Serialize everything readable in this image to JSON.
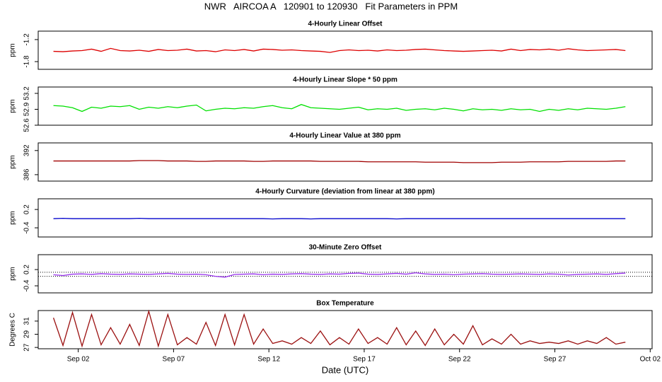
{
  "title": "NWR   AIRCOA A   120901 to 120930   Fit Parameters in PPM",
  "chart_data": [
    {
      "type": "line",
      "title": "4-Hourly Linear Offset",
      "y_label": "ppm",
      "color": "#dd0000",
      "xlim": [
        -0.1,
        32.1
      ],
      "ylim": [
        -2.01,
        -0.97
      ],
      "yticks": [
        -1.8,
        -1.2
      ],
      "x": [
        0.7,
        1.2,
        1.7,
        2.2,
        2.7,
        3.2,
        3.7,
        4.2,
        4.7,
        5.2,
        5.7,
        6.2,
        6.7,
        7.2,
        7.7,
        8.2,
        8.7,
        9.2,
        9.7,
        10.2,
        10.7,
        11.2,
        11.7,
        12.2,
        12.7,
        13.2,
        13.7,
        14.2,
        14.7,
        15.2,
        15.7,
        16.2,
        16.7,
        17.2,
        17.7,
        18.2,
        18.7,
        19.2,
        19.7,
        20.2,
        20.7,
        21.2,
        21.7,
        22.2,
        22.7,
        23.2,
        23.7,
        24.2,
        24.7,
        25.2,
        25.7,
        26.2,
        26.7,
        27.2,
        27.7,
        28.2,
        28.7,
        29.2,
        29.7,
        30.2,
        30.7
      ],
      "values": [
        -1.52,
        -1.53,
        -1.51,
        -1.5,
        -1.46,
        -1.52,
        -1.44,
        -1.5,
        -1.51,
        -1.49,
        -1.52,
        -1.47,
        -1.5,
        -1.49,
        -1.46,
        -1.51,
        -1.5,
        -1.53,
        -1.48,
        -1.5,
        -1.47,
        -1.51,
        -1.46,
        -1.47,
        -1.49,
        -1.48,
        -1.5,
        -1.51,
        -1.52,
        -1.55,
        -1.5,
        -1.48,
        -1.5,
        -1.49,
        -1.51,
        -1.48,
        -1.5,
        -1.49,
        -1.47,
        -1.46,
        -1.48,
        -1.5,
        -1.51,
        -1.52,
        -1.51,
        -1.5,
        -1.49,
        -1.51,
        -1.46,
        -1.5,
        -1.47,
        -1.48,
        -1.46,
        -1.49,
        -1.45,
        -1.48,
        -1.5,
        -1.49,
        -1.48,
        -1.47,
        -1.5
      ]
    },
    {
      "type": "line",
      "title": "4-Hourly Linear Slope * 50 ppm",
      "y_label": "ppm",
      "color": "#00e000",
      "xlim": [
        -0.1,
        32.1
      ],
      "ylim": [
        52.6,
        53.32
      ],
      "yticks": [
        52.6,
        52.9,
        53.2
      ],
      "x": [
        0.7,
        1.2,
        1.7,
        2.2,
        2.7,
        3.2,
        3.7,
        4.2,
        4.7,
        5.2,
        5.7,
        6.2,
        6.7,
        7.2,
        7.7,
        8.2,
        8.7,
        9.2,
        9.7,
        10.2,
        10.7,
        11.2,
        11.7,
        12.2,
        12.7,
        13.2,
        13.7,
        14.2,
        14.7,
        15.2,
        15.7,
        16.2,
        16.7,
        17.2,
        17.7,
        18.2,
        18.7,
        19.2,
        19.7,
        20.2,
        20.7,
        21.2,
        21.7,
        22.2,
        22.7,
        23.2,
        23.7,
        24.2,
        24.7,
        25.2,
        25.7,
        26.2,
        26.7,
        27.2,
        27.7,
        28.2,
        28.7,
        29.2,
        29.7,
        30.2,
        30.7
      ],
      "values": [
        52.97,
        52.96,
        52.93,
        52.86,
        52.94,
        52.92,
        52.96,
        52.95,
        52.97,
        52.9,
        52.94,
        52.92,
        52.95,
        52.93,
        52.96,
        52.98,
        52.87,
        52.9,
        52.92,
        52.91,
        52.93,
        52.92,
        52.95,
        52.97,
        52.93,
        52.91,
        52.99,
        52.93,
        52.92,
        52.91,
        52.9,
        52.92,
        52.94,
        52.89,
        52.91,
        52.9,
        52.92,
        52.88,
        52.9,
        52.91,
        52.89,
        52.92,
        52.9,
        52.87,
        52.91,
        52.89,
        52.9,
        52.88,
        52.91,
        52.89,
        52.9,
        52.86,
        52.9,
        52.88,
        52.91,
        52.89,
        52.92,
        52.91,
        52.9,
        52.92,
        52.95
      ]
    },
    {
      "type": "line",
      "title": "4-Hourly Linear Value at 380 ppm",
      "y_label": "ppm",
      "color": "#a00000",
      "xlim": [
        -0.1,
        32.1
      ],
      "ylim": [
        384.4,
        393.9
      ],
      "yticks": [
        386,
        392
      ],
      "x": [
        0.7,
        1.2,
        1.7,
        2.2,
        2.7,
        3.2,
        3.7,
        4.2,
        4.7,
        5.2,
        5.7,
        6.2,
        6.7,
        7.2,
        7.7,
        8.2,
        8.7,
        9.2,
        9.7,
        10.2,
        10.7,
        11.2,
        11.7,
        12.2,
        12.7,
        13.2,
        13.7,
        14.2,
        14.7,
        15.2,
        15.7,
        16.2,
        16.7,
        17.2,
        17.7,
        18.2,
        18.7,
        19.2,
        19.7,
        20.2,
        20.7,
        21.2,
        21.7,
        22.2,
        22.7,
        23.2,
        23.7,
        24.2,
        24.7,
        25.2,
        25.7,
        26.2,
        26.7,
        27.2,
        27.7,
        28.2,
        28.7,
        29.2,
        29.7,
        30.2,
        30.7
      ],
      "values": [
        389.4,
        389.4,
        389.4,
        389.4,
        389.4,
        389.4,
        389.4,
        389.4,
        389.4,
        389.5,
        389.5,
        389.5,
        389.4,
        389.4,
        389.4,
        389.3,
        389.3,
        389.4,
        389.4,
        389.4,
        389.4,
        389.3,
        389.3,
        389.4,
        389.4,
        389.4,
        389.4,
        389.4,
        389.3,
        389.3,
        389.3,
        389.3,
        389.3,
        389.2,
        389.2,
        389.2,
        389.2,
        389.2,
        389.2,
        389.1,
        389.1,
        389.1,
        389.1,
        389.0,
        389.0,
        389.0,
        389.0,
        389.1,
        389.1,
        389.1,
        389.2,
        389.2,
        389.2,
        389.2,
        389.3,
        389.3,
        389.3,
        389.3,
        389.3,
        389.4,
        389.4
      ]
    },
    {
      "type": "line",
      "title": "4-Hourly Curvature (deviation from linear at 380 ppm)",
      "y_label": "ppm",
      "color": "#0000cc",
      "xlim": [
        -0.1,
        32.1
      ],
      "ylim": [
        -0.7,
        0.55
      ],
      "yticks": [
        -0.4,
        0.2
      ],
      "x": [
        0.7,
        1.2,
        1.7,
        2.2,
        2.7,
        3.2,
        3.7,
        4.2,
        4.7,
        5.2,
        5.7,
        6.2,
        6.7,
        7.2,
        7.7,
        8.2,
        8.7,
        9.2,
        9.7,
        10.2,
        10.7,
        11.2,
        11.7,
        12.2,
        12.7,
        13.2,
        13.7,
        14.2,
        14.7,
        15.2,
        15.7,
        16.2,
        16.7,
        17.2,
        17.7,
        18.2,
        18.7,
        19.2,
        19.7,
        20.2,
        20.7,
        21.2,
        21.7,
        22.2,
        22.7,
        23.2,
        23.7,
        24.2,
        24.7,
        25.2,
        25.7,
        26.2,
        26.7,
        27.2,
        27.7,
        28.2,
        28.7,
        29.2,
        29.7,
        30.2,
        30.7
      ],
      "values": [
        -0.1,
        -0.09,
        -0.1,
        -0.1,
        -0.1,
        -0.1,
        -0.1,
        -0.1,
        -0.1,
        -0.09,
        -0.1,
        -0.1,
        -0.1,
        -0.1,
        -0.1,
        -0.1,
        -0.1,
        -0.1,
        -0.1,
        -0.1,
        -0.1,
        -0.1,
        -0.1,
        -0.11,
        -0.1,
        -0.1,
        -0.1,
        -0.11,
        -0.1,
        -0.1,
        -0.1,
        -0.1,
        -0.1,
        -0.1,
        -0.1,
        -0.1,
        -0.11,
        -0.1,
        -0.1,
        -0.1,
        -0.1,
        -0.1,
        -0.1,
        -0.1,
        -0.1,
        -0.1,
        -0.1,
        -0.1,
        -0.1,
        -0.1,
        -0.1,
        -0.1,
        -0.1,
        -0.1,
        -0.1,
        -0.1,
        -0.1,
        -0.1,
        -0.1,
        -0.1,
        -0.1
      ]
    },
    {
      "type": "line",
      "title": "30-Minute Zero Offset",
      "y_label": "ppm",
      "color": "#9933ee",
      "xlim": [
        -0.1,
        32.1
      ],
      "ylim": [
        -0.66,
        0.75
      ],
      "yticks": [
        -0.4,
        0.2
      ],
      "hlines": [
        0.1,
        -0.05
      ],
      "x": [
        0.7,
        1.2,
        1.7,
        2.2,
        2.7,
        3.2,
        3.7,
        4.2,
        4.7,
        5.2,
        5.7,
        6.2,
        6.7,
        7.2,
        7.7,
        8.2,
        8.7,
        9.2,
        9.7,
        10.2,
        10.7,
        11.2,
        11.7,
        12.2,
        12.7,
        13.2,
        13.7,
        14.2,
        14.7,
        15.2,
        15.7,
        16.2,
        16.7,
        17.2,
        17.7,
        18.2,
        18.7,
        19.2,
        19.7,
        20.2,
        20.7,
        21.2,
        21.7,
        22.2,
        22.7,
        23.2,
        23.7,
        24.2,
        24.7,
        25.2,
        25.7,
        26.2,
        26.7,
        27.2,
        27.7,
        28.2,
        28.7,
        29.2,
        29.7,
        30.2,
        30.7
      ],
      "values": [
        0.01,
        -0.02,
        0.03,
        0.04,
        0.02,
        0.05,
        0.03,
        0.02,
        0.04,
        0.03,
        0.02,
        0.04,
        0.06,
        0.03,
        0.02,
        0.03,
        0.01,
        -0.05,
        -0.08,
        0.02,
        0.03,
        0.04,
        0.01,
        0.03,
        0.02,
        0.04,
        0.05,
        0.03,
        0.02,
        0.04,
        0.03,
        0.06,
        0.07,
        0.03,
        0.02,
        0.04,
        0.06,
        0.03,
        0.08,
        0.04,
        0.02,
        0.03,
        0.01,
        0.03,
        0.04,
        0.05,
        0.03,
        0.02,
        0.03,
        0.04,
        0.03,
        0.02,
        0.04,
        0.03,
        0.0,
        0.02,
        0.03,
        0.04,
        0.02,
        0.05,
        0.07
      ]
    },
    {
      "type": "line",
      "title": "Box Temperature",
      "y_label": "Degrees C",
      "x_label": "Date (UTC)",
      "color": "#9b1010",
      "xlim": [
        -0.1,
        32.1
      ],
      "ylim": [
        26.8,
        32.6
      ],
      "yticks": [
        27,
        29,
        31
      ],
      "xticks": [
        {
          "value": 2,
          "label": "Sep 02"
        },
        {
          "value": 7,
          "label": "Sep 07"
        },
        {
          "value": 12,
          "label": "Sep 12"
        },
        {
          "value": 17,
          "label": "Sep 17"
        },
        {
          "value": 22,
          "label": "Sep 22"
        },
        {
          "value": 27,
          "label": "Sep 27"
        },
        {
          "value": 32,
          "label": "Oct 02"
        }
      ],
      "x": [
        0.7,
        1.2,
        1.7,
        2.2,
        2.7,
        3.2,
        3.7,
        4.2,
        4.7,
        5.2,
        5.7,
        6.2,
        6.7,
        7.2,
        7.7,
        8.2,
        8.7,
        9.2,
        9.7,
        10.2,
        10.7,
        11.2,
        11.7,
        12.2,
        12.7,
        13.2,
        13.7,
        14.2,
        14.7,
        15.2,
        15.7,
        16.2,
        16.7,
        17.2,
        17.7,
        18.2,
        18.7,
        19.2,
        19.7,
        20.2,
        20.7,
        21.2,
        21.7,
        22.2,
        22.7,
        23.2,
        23.7,
        24.2,
        24.7,
        25.2,
        25.7,
        26.2,
        26.7,
        27.2,
        27.7,
        28.2,
        28.7,
        29.2,
        29.7,
        30.2,
        30.7
      ],
      "values": [
        31.5,
        27.3,
        32.3,
        27.2,
        32.0,
        27.4,
        30.0,
        27.5,
        30.5,
        27.3,
        32.5,
        27.2,
        32.0,
        27.4,
        28.5,
        27.5,
        30.8,
        27.3,
        32.0,
        27.4,
        32.0,
        27.5,
        29.8,
        27.6,
        28.0,
        27.5,
        28.5,
        27.6,
        29.5,
        27.4,
        28.5,
        27.5,
        29.8,
        27.6,
        28.5,
        27.5,
        30.0,
        27.4,
        29.5,
        27.3,
        29.8,
        27.4,
        29.0,
        27.5,
        30.3,
        27.4,
        28.3,
        27.5,
        29.0,
        27.5,
        28.0,
        27.6,
        27.8,
        27.6,
        28.0,
        27.5,
        28.0,
        27.6,
        28.5,
        27.5,
        27.8
      ]
    }
  ]
}
